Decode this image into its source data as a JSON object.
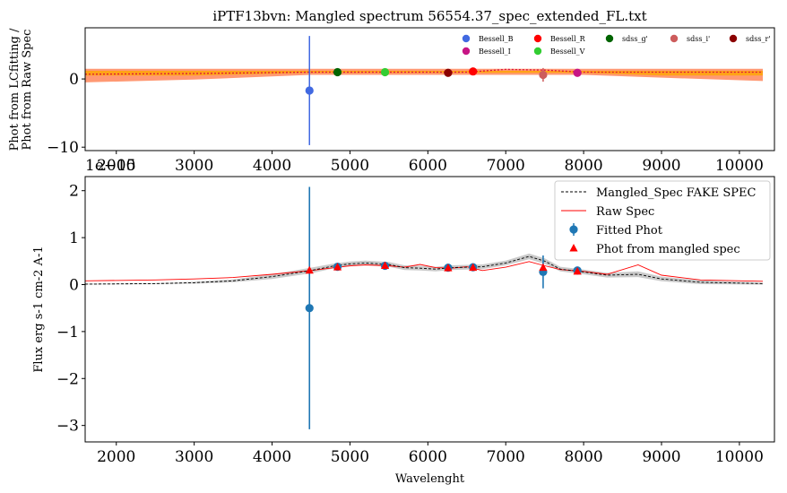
{
  "chart_data": [
    {
      "type": "scatter",
      "title": "iPTF13bvn: Mangled spectrum 56554.37_spec_extended_FL.txt",
      "xlabel": "",
      "ylabel": "Phot from LCfitting /\nPhot from Raw Spec",
      "xlim": [
        1600,
        10450
      ],
      "ylim": [
        -10.5,
        7.5
      ],
      "xticks": [
        "2000",
        "3000",
        "4000",
        "5000",
        "6000",
        "7000",
        "8000",
        "9000",
        "10000"
      ],
      "xtick_values": [
        2000,
        3000,
        4000,
        5000,
        6000,
        7000,
        8000,
        9000,
        10000
      ],
      "yticks": [
        "0",
        "−10"
      ],
      "ytick_values": [
        0,
        -10
      ],
      "offset_text": "1e−15",
      "legend": "top-right",
      "ratio_band": {
        "x": [
          1600,
          3000,
          4500,
          5500,
          6500,
          7000,
          7500,
          8000,
          9000,
          10300
        ],
        "upper": [
          1.5,
          1.5,
          1.5,
          1.5,
          1.5,
          1.5,
          1.5,
          1.5,
          1.5,
          1.5
        ],
        "lower": [
          -0.5,
          -0.1,
          0.6,
          0.6,
          0.6,
          0.6,
          0.6,
          0.6,
          0.2,
          -0.3
        ],
        "colors": [
          "#ff4500",
          "#ffa500"
        ]
      },
      "ratio_line": {
        "x": [
          1600,
          3000,
          4500,
          5500,
          6500,
          7000,
          7500,
          8000,
          9000,
          10300
        ],
        "y": [
          0.7,
          0.8,
          1.0,
          1.0,
          1.0,
          1.4,
          1.3,
          1.0,
          1.0,
          1.0
        ],
        "color": "#dc143c"
      },
      "series": [
        {
          "name": "Bessell_B",
          "color": "#4169e1",
          "points": [
            {
              "x": 4480,
              "y": -1.7,
              "yerr": 8.0
            }
          ]
        },
        {
          "name": "Bessell_I",
          "color": "#c71585",
          "points": [
            {
              "x": 7920,
              "y": 0.9,
              "yerr": 0.3
            }
          ]
        },
        {
          "name": "Bessell_R",
          "color": "#ff0000",
          "points": [
            {
              "x": 6580,
              "y": 1.1,
              "yerr": 0.3
            }
          ]
        },
        {
          "name": "Bessell_V",
          "color": "#32cd32",
          "points": [
            {
              "x": 5450,
              "y": 1.0,
              "yerr": 0.3
            }
          ]
        },
        {
          "name": "sdss_g'",
          "color": "#006400",
          "points": [
            {
              "x": 4840,
              "y": 1.0,
              "yerr": 0.3
            }
          ]
        },
        {
          "name": "sdss_i'",
          "color": "#cd5c5c",
          "points": [
            {
              "x": 7480,
              "y": 0.6,
              "yerr": 1.0
            }
          ]
        },
        {
          "name": "sdss_r'",
          "color": "#8b0000",
          "points": [
            {
              "x": 6260,
              "y": 0.9,
              "yerr": 0.3
            }
          ]
        }
      ]
    },
    {
      "type": "line",
      "title": "",
      "xlabel": "Wavelenght",
      "ylabel": "Flux erg s-1 cm-2 A-1",
      "xlim": [
        1600,
        10450
      ],
      "ylim": [
        -3.35,
        2.3
      ],
      "xticks": [
        "2000",
        "3000",
        "4000",
        "5000",
        "6000",
        "7000",
        "8000",
        "9000",
        "10000"
      ],
      "xtick_values": [
        2000,
        3000,
        4000,
        5000,
        6000,
        7000,
        8000,
        9000,
        10000
      ],
      "yticks": [
        "2",
        "1",
        "0",
        "−1",
        "−2",
        "−3"
      ],
      "ytick_values": [
        2,
        1,
        0,
        -1,
        -2,
        -3
      ],
      "legend": "top-right",
      "series": [
        {
          "name": "Mangled_Spec FAKE SPEC",
          "color": "#000000",
          "style": "dashed",
          "x": [
            1600,
            2500,
            3000,
            3500,
            4000,
            4500,
            4800,
            5000,
            5200,
            5500,
            5700,
            5900,
            6100,
            6300,
            6500,
            6700,
            7000,
            7300,
            7500,
            7700,
            8000,
            8300,
            8700,
            9000,
            9500,
            10300
          ],
          "y": [
            0.01,
            0.02,
            0.04,
            0.08,
            0.17,
            0.3,
            0.4,
            0.44,
            0.46,
            0.43,
            0.36,
            0.35,
            0.33,
            0.36,
            0.37,
            0.38,
            0.46,
            0.6,
            0.5,
            0.33,
            0.27,
            0.2,
            0.22,
            0.12,
            0.05,
            0.02
          ]
        },
        {
          "name": "Raw Spec",
          "color": "#ff0000",
          "style": "solid",
          "x": [
            1600,
            2500,
            3000,
            3500,
            4000,
            4500,
            4800,
            5000,
            5200,
            5500,
            5700,
            5900,
            6100,
            6300,
            6500,
            6700,
            7000,
            7300,
            7500,
            7700,
            8000,
            8300,
            8700,
            9000,
            9500,
            10300
          ],
          "y": [
            0.08,
            0.1,
            0.12,
            0.15,
            0.22,
            0.3,
            0.36,
            0.4,
            0.42,
            0.4,
            0.37,
            0.43,
            0.36,
            0.35,
            0.38,
            0.3,
            0.37,
            0.49,
            0.4,
            0.32,
            0.28,
            0.22,
            0.42,
            0.2,
            0.1,
            0.07
          ]
        }
      ],
      "uncertainty_band": {
        "color": "#bdbdbd",
        "width": [
          0.01,
          0.01,
          0.02,
          0.03,
          0.05,
          0.06,
          0.05,
          0.05,
          0.05,
          0.05,
          0.05,
          0.05,
          0.05,
          0.05,
          0.05,
          0.05,
          0.05,
          0.06,
          0.06,
          0.05,
          0.05,
          0.05,
          0.06,
          0.05,
          0.04,
          0.02
        ]
      },
      "fitted_phot": {
        "name": "Fitted Phot",
        "color": "#1f77b4",
        "points": [
          {
            "x": 4480,
            "y": -0.5,
            "yerr": 2.58
          },
          {
            "x": 4840,
            "y": 0.38,
            "yerr": 0.03
          },
          {
            "x": 5450,
            "y": 0.4,
            "yerr": 0.03
          },
          {
            "x": 6260,
            "y": 0.36,
            "yerr": 0.03
          },
          {
            "x": 6580,
            "y": 0.37,
            "yerr": 0.03
          },
          {
            "x": 7480,
            "y": 0.27,
            "yerr": 0.35
          },
          {
            "x": 7920,
            "y": 0.3,
            "yerr": 0.03
          }
        ]
      },
      "mangled_phot": {
        "name": "Phot from mangled spec",
        "color": "#ff0000",
        "points": [
          {
            "x": 4480,
            "y": 0.3
          },
          {
            "x": 4840,
            "y": 0.37
          },
          {
            "x": 5450,
            "y": 0.4
          },
          {
            "x": 6260,
            "y": 0.35
          },
          {
            "x": 6580,
            "y": 0.36
          },
          {
            "x": 7480,
            "y": 0.36
          },
          {
            "x": 7920,
            "y": 0.28
          }
        ]
      }
    }
  ]
}
